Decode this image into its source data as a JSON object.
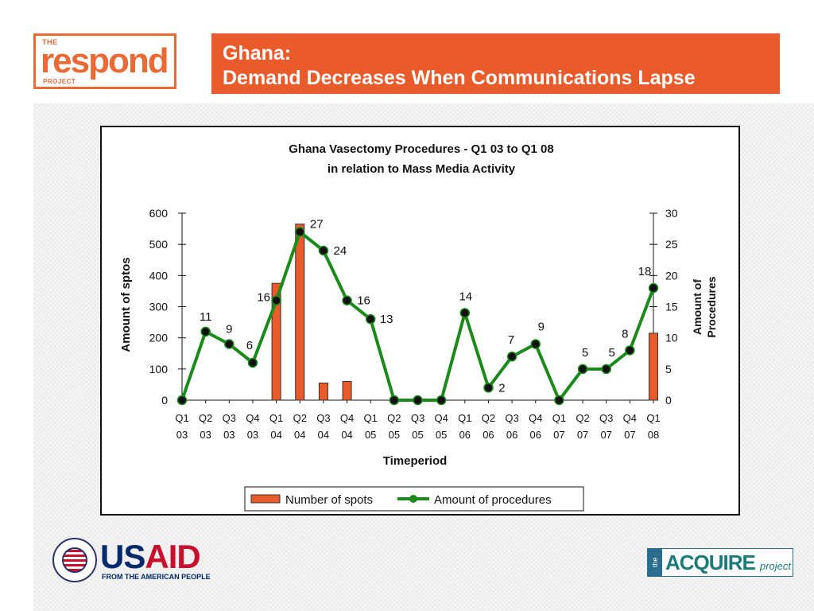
{
  "header": {
    "title_line1": "Ghana:",
    "title_line2": "Demand Decreases When Communications Lapse"
  },
  "logos": {
    "respond": {
      "the": "THE",
      "name": "respond",
      "project": "PROJECT"
    },
    "usaid": {
      "us": "US",
      "aid": "AID",
      "tagline": "FROM THE AMERICAN PEOPLE"
    },
    "acquire": {
      "the": "the",
      "name": "ACQUIRE",
      "project": "project"
    }
  },
  "colors": {
    "accent": "#ea5b2b",
    "bar_fill": "#ea5b2b",
    "line": "#1a8a1a",
    "marker": "#111111"
  },
  "chart_data": {
    "type": "bar+line",
    "title": "Ghana Vasectomy Procedures - Q1 03 to Q1 08",
    "subtitle": "in relation to Mass Media Activity",
    "xlabel": "Timeperiod",
    "ylabel": "Amount of sptos",
    "y2label_line1": "Amount of",
    "y2label_line2": "Procedures",
    "categories": [
      [
        "Q1",
        "03"
      ],
      [
        "Q2",
        "03"
      ],
      [
        "Q3",
        "03"
      ],
      [
        "Q4",
        "03"
      ],
      [
        "Q1",
        "04"
      ],
      [
        "Q2",
        "04"
      ],
      [
        "Q3",
        "04"
      ],
      [
        "Q4",
        "04"
      ],
      [
        "Q1",
        "05"
      ],
      [
        "Q2",
        "05"
      ],
      [
        "Q3",
        "05"
      ],
      [
        "Q4",
        "05"
      ],
      [
        "Q1",
        "06"
      ],
      [
        "Q2",
        "06"
      ],
      [
        "Q3",
        "06"
      ],
      [
        "Q4",
        "06"
      ],
      [
        "Q1",
        "07"
      ],
      [
        "Q2",
        "07"
      ],
      [
        "Q3",
        "07"
      ],
      [
        "Q4",
        "07"
      ],
      [
        "Q1",
        "08"
      ]
    ],
    "ylim": [
      0,
      600
    ],
    "yticks": [
      0,
      100,
      200,
      300,
      400,
      500,
      600
    ],
    "y2lim": [
      0,
      30
    ],
    "y2ticks": [
      0,
      5,
      10,
      15,
      20,
      25,
      30
    ],
    "legend_position": "bottom",
    "series": [
      {
        "name": "Number of spots",
        "type": "bar",
        "axis": "left",
        "values": [
          0,
          0,
          0,
          0,
          375,
          565,
          55,
          60,
          0,
          0,
          0,
          0,
          0,
          0,
          0,
          0,
          0,
          0,
          0,
          0,
          215
        ]
      },
      {
        "name": "Amount of procedures",
        "type": "line",
        "axis": "right",
        "values": [
          0,
          11,
          9,
          6,
          16,
          27,
          24,
          16,
          13,
          0,
          0,
          0,
          14,
          2,
          7,
          9,
          0,
          5,
          5,
          8,
          18
        ],
        "labels": [
          "",
          "11",
          "9",
          "6",
          "16",
          "27",
          "24",
          "16",
          "13",
          "",
          "",
          "",
          "14",
          "2",
          "7",
          "9",
          "",
          "5",
          "5",
          "8",
          "18"
        ]
      }
    ]
  }
}
